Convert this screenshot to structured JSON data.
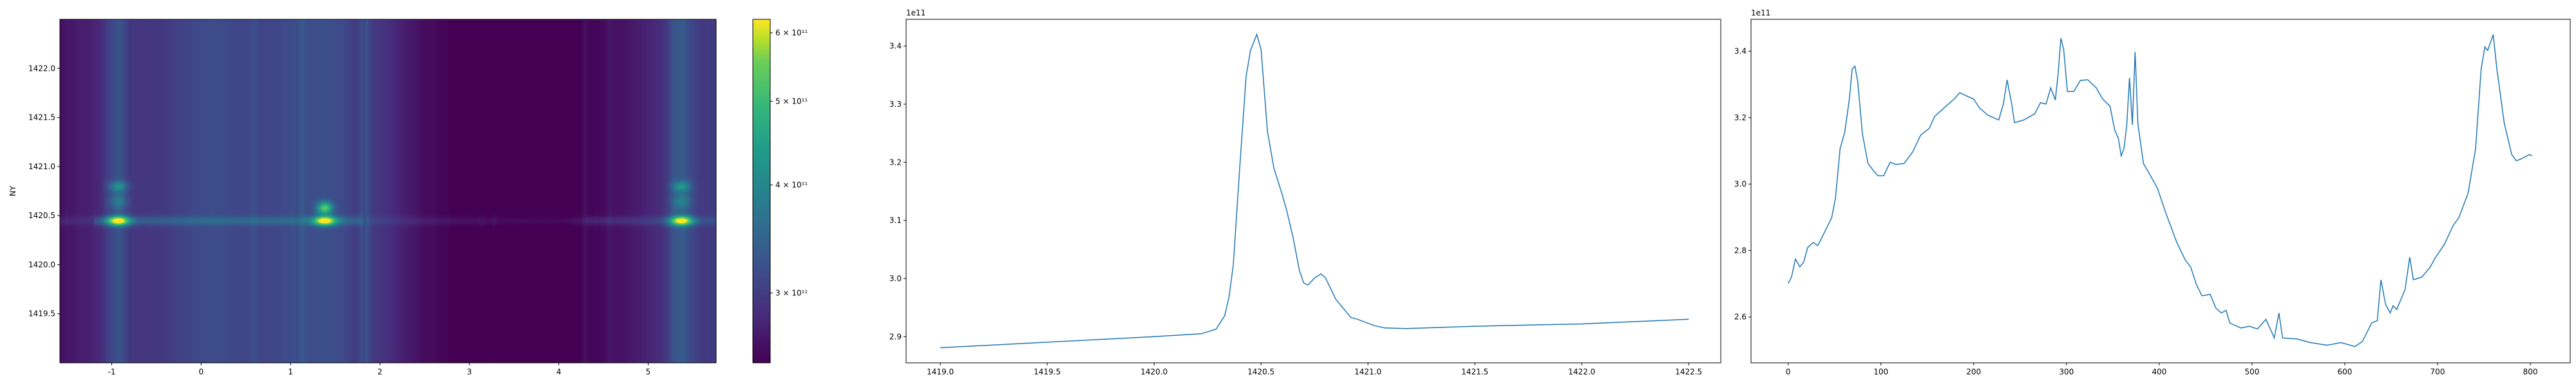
{
  "chart_data": [
    {
      "type": "heatmap",
      "colormap": "viridis",
      "ylabel": "NY",
      "xlabel": "",
      "xlim": [
        -1.58,
        5.76
      ],
      "ylim": [
        1419.0,
        1422.5
      ],
      "xticks": [
        -1,
        0,
        1,
        2,
        3,
        4,
        5
      ],
      "xtick_labels": [
        "-1",
        "0",
        "1",
        "2",
        "3",
        "4",
        "5"
      ],
      "yticks": [
        1419.5,
        1420.0,
        1420.5,
        1421.0,
        1421.5,
        1422.0
      ],
      "ytick_labels": [
        "1419.5",
        "1420.0",
        "1420.5",
        "1421.0",
        "1421.5",
        "1422.0"
      ],
      "colorbar": {
        "scale": "log",
        "range": [
          249000000000.0,
          622000000000.0
        ],
        "ticks": [
          300000000000.0,
          400000000000.0,
          500000000000.0,
          600000000000.0
        ],
        "tick_labels": [
          "3 × 10¹¹",
          "4 × 10¹¹",
          "5 × 10¹¹",
          "6 × 10¹¹"
        ]
      },
      "bright_features": [
        {
          "x": -0.93,
          "y": 1420.45
        },
        {
          "x": 1.38,
          "y": 1420.58
        },
        {
          "x": 5.37,
          "y": 1420.45
        }
      ]
    },
    {
      "type": "line",
      "offset_label": "1e11",
      "color": "#1f77b4",
      "grid": false,
      "xlim": [
        1418.84,
        1422.65
      ],
      "ylim": [
        2.855,
        3.446
      ],
      "xticks": [
        1419.0,
        1419.5,
        1420.0,
        1420.5,
        1421.0,
        1421.5,
        1422.0,
        1422.5
      ],
      "xtick_labels": [
        "1419.0",
        "1419.5",
        "1420.0",
        "1420.5",
        "1421.0",
        "1421.5",
        "1422.0",
        "1422.5"
      ],
      "yticks": [
        2.9,
        3.0,
        3.1,
        3.2,
        3.3,
        3.4
      ],
      "ytick_labels": [
        "2.9",
        "3.0",
        "3.1",
        "3.2",
        "3.3",
        "3.4"
      ],
      "x": [
        1419.0,
        1420.0,
        1420.22,
        1420.29,
        1420.33,
        1420.35,
        1420.37,
        1420.4,
        1420.43,
        1420.45,
        1420.48,
        1420.5,
        1420.53,
        1420.56,
        1420.6,
        1420.62,
        1420.65,
        1420.68,
        1420.7,
        1420.72,
        1420.75,
        1420.78,
        1420.8,
        1420.85,
        1420.92,
        1420.95,
        1421.03,
        1421.08,
        1421.18,
        1421.5,
        1422.0,
        1422.5
      ],
      "y": [
        2.881,
        2.9,
        2.905,
        2.913,
        2.936,
        2.968,
        3.023,
        3.19,
        3.347,
        3.392,
        3.42,
        3.394,
        3.253,
        3.19,
        3.143,
        3.117,
        3.07,
        3.013,
        2.992,
        2.989,
        3.001,
        3.008,
        3.002,
        2.964,
        2.933,
        2.93,
        2.919,
        2.915,
        2.914,
        2.918,
        2.922,
        2.93
      ]
    },
    {
      "type": "line",
      "offset_label": "1e11",
      "color": "#1f77b4",
      "grid": false,
      "xlim": [
        -40,
        843
      ],
      "ylim": [
        2.462,
        3.496
      ],
      "xticks": [
        0,
        100,
        200,
        300,
        400,
        500,
        600,
        700,
        800
      ],
      "xtick_labels": [
        "0",
        "100",
        "200",
        "300",
        "400",
        "500",
        "600",
        "700",
        "800"
      ],
      "yticks": [
        2.6,
        2.8,
        3.0,
        3.2,
        3.4
      ],
      "ytick_labels": [
        "2.6",
        "2.8",
        "3.0",
        "3.2",
        "3.4"
      ],
      "x": [
        0,
        3.6,
        7.8,
        12.6,
        16.8,
        21,
        27,
        32,
        39,
        47,
        51,
        56,
        61,
        66,
        69,
        72,
        75,
        80,
        86,
        92,
        97,
        103,
        110,
        116,
        125,
        134,
        143,
        152,
        158,
        170,
        179,
        185,
        191,
        200,
        206,
        215,
        227,
        232,
        236,
        241,
        244,
        254,
        266,
        272,
        278,
        283,
        288,
        291,
        294,
        297,
        301,
        308,
        315,
        323,
        332,
        339,
        347,
        352,
        356,
        359,
        362,
        365,
        368,
        371,
        374,
        377,
        383,
        389,
        398,
        407,
        419,
        428,
        434,
        440,
        446,
        455,
        461,
        467,
        472,
        476,
        488,
        497,
        506,
        515,
        524,
        529,
        533,
        548,
        563,
        581,
        596,
        611,
        619,
        629,
        635,
        639,
        644,
        649,
        652,
        656,
        665,
        670,
        674,
        683,
        692,
        698,
        707,
        717,
        723,
        733,
        741,
        747,
        751,
        754,
        760,
        764,
        772,
        780,
        785,
        791,
        799,
        802
      ],
      "y": [
        2.701,
        2.72,
        2.774,
        2.751,
        2.765,
        2.809,
        2.824,
        2.815,
        2.854,
        2.899,
        2.958,
        3.107,
        3.156,
        3.256,
        3.346,
        3.355,
        3.308,
        3.152,
        3.063,
        3.04,
        3.025,
        3.025,
        3.066,
        3.059,
        3.062,
        3.096,
        3.148,
        3.167,
        3.204,
        3.234,
        3.256,
        3.275,
        3.267,
        3.256,
        3.23,
        3.208,
        3.193,
        3.241,
        3.314,
        3.241,
        3.185,
        3.193,
        3.212,
        3.245,
        3.241,
        3.29,
        3.253,
        3.331,
        3.439,
        3.405,
        3.279,
        3.279,
        3.312,
        3.314,
        3.29,
        3.256,
        3.234,
        3.163,
        3.137,
        3.085,
        3.107,
        3.178,
        3.32,
        3.178,
        3.398,
        3.182,
        3.062,
        3.033,
        2.988,
        2.914,
        2.824,
        2.772,
        2.75,
        2.698,
        2.664,
        2.668,
        2.627,
        2.612,
        2.62,
        2.582,
        2.567,
        2.572,
        2.564,
        2.593,
        2.537,
        2.612,
        2.537,
        2.534,
        2.523,
        2.515,
        2.523,
        2.511,
        2.526,
        2.582,
        2.589,
        2.712,
        2.638,
        2.612,
        2.634,
        2.623,
        2.683,
        2.78,
        2.712,
        2.72,
        2.75,
        2.78,
        2.817,
        2.876,
        2.899,
        2.973,
        3.107,
        3.346,
        3.413,
        3.402,
        3.45,
        3.346,
        3.182,
        3.089,
        3.07,
        3.077,
        3.089,
        3.085
      ]
    }
  ]
}
